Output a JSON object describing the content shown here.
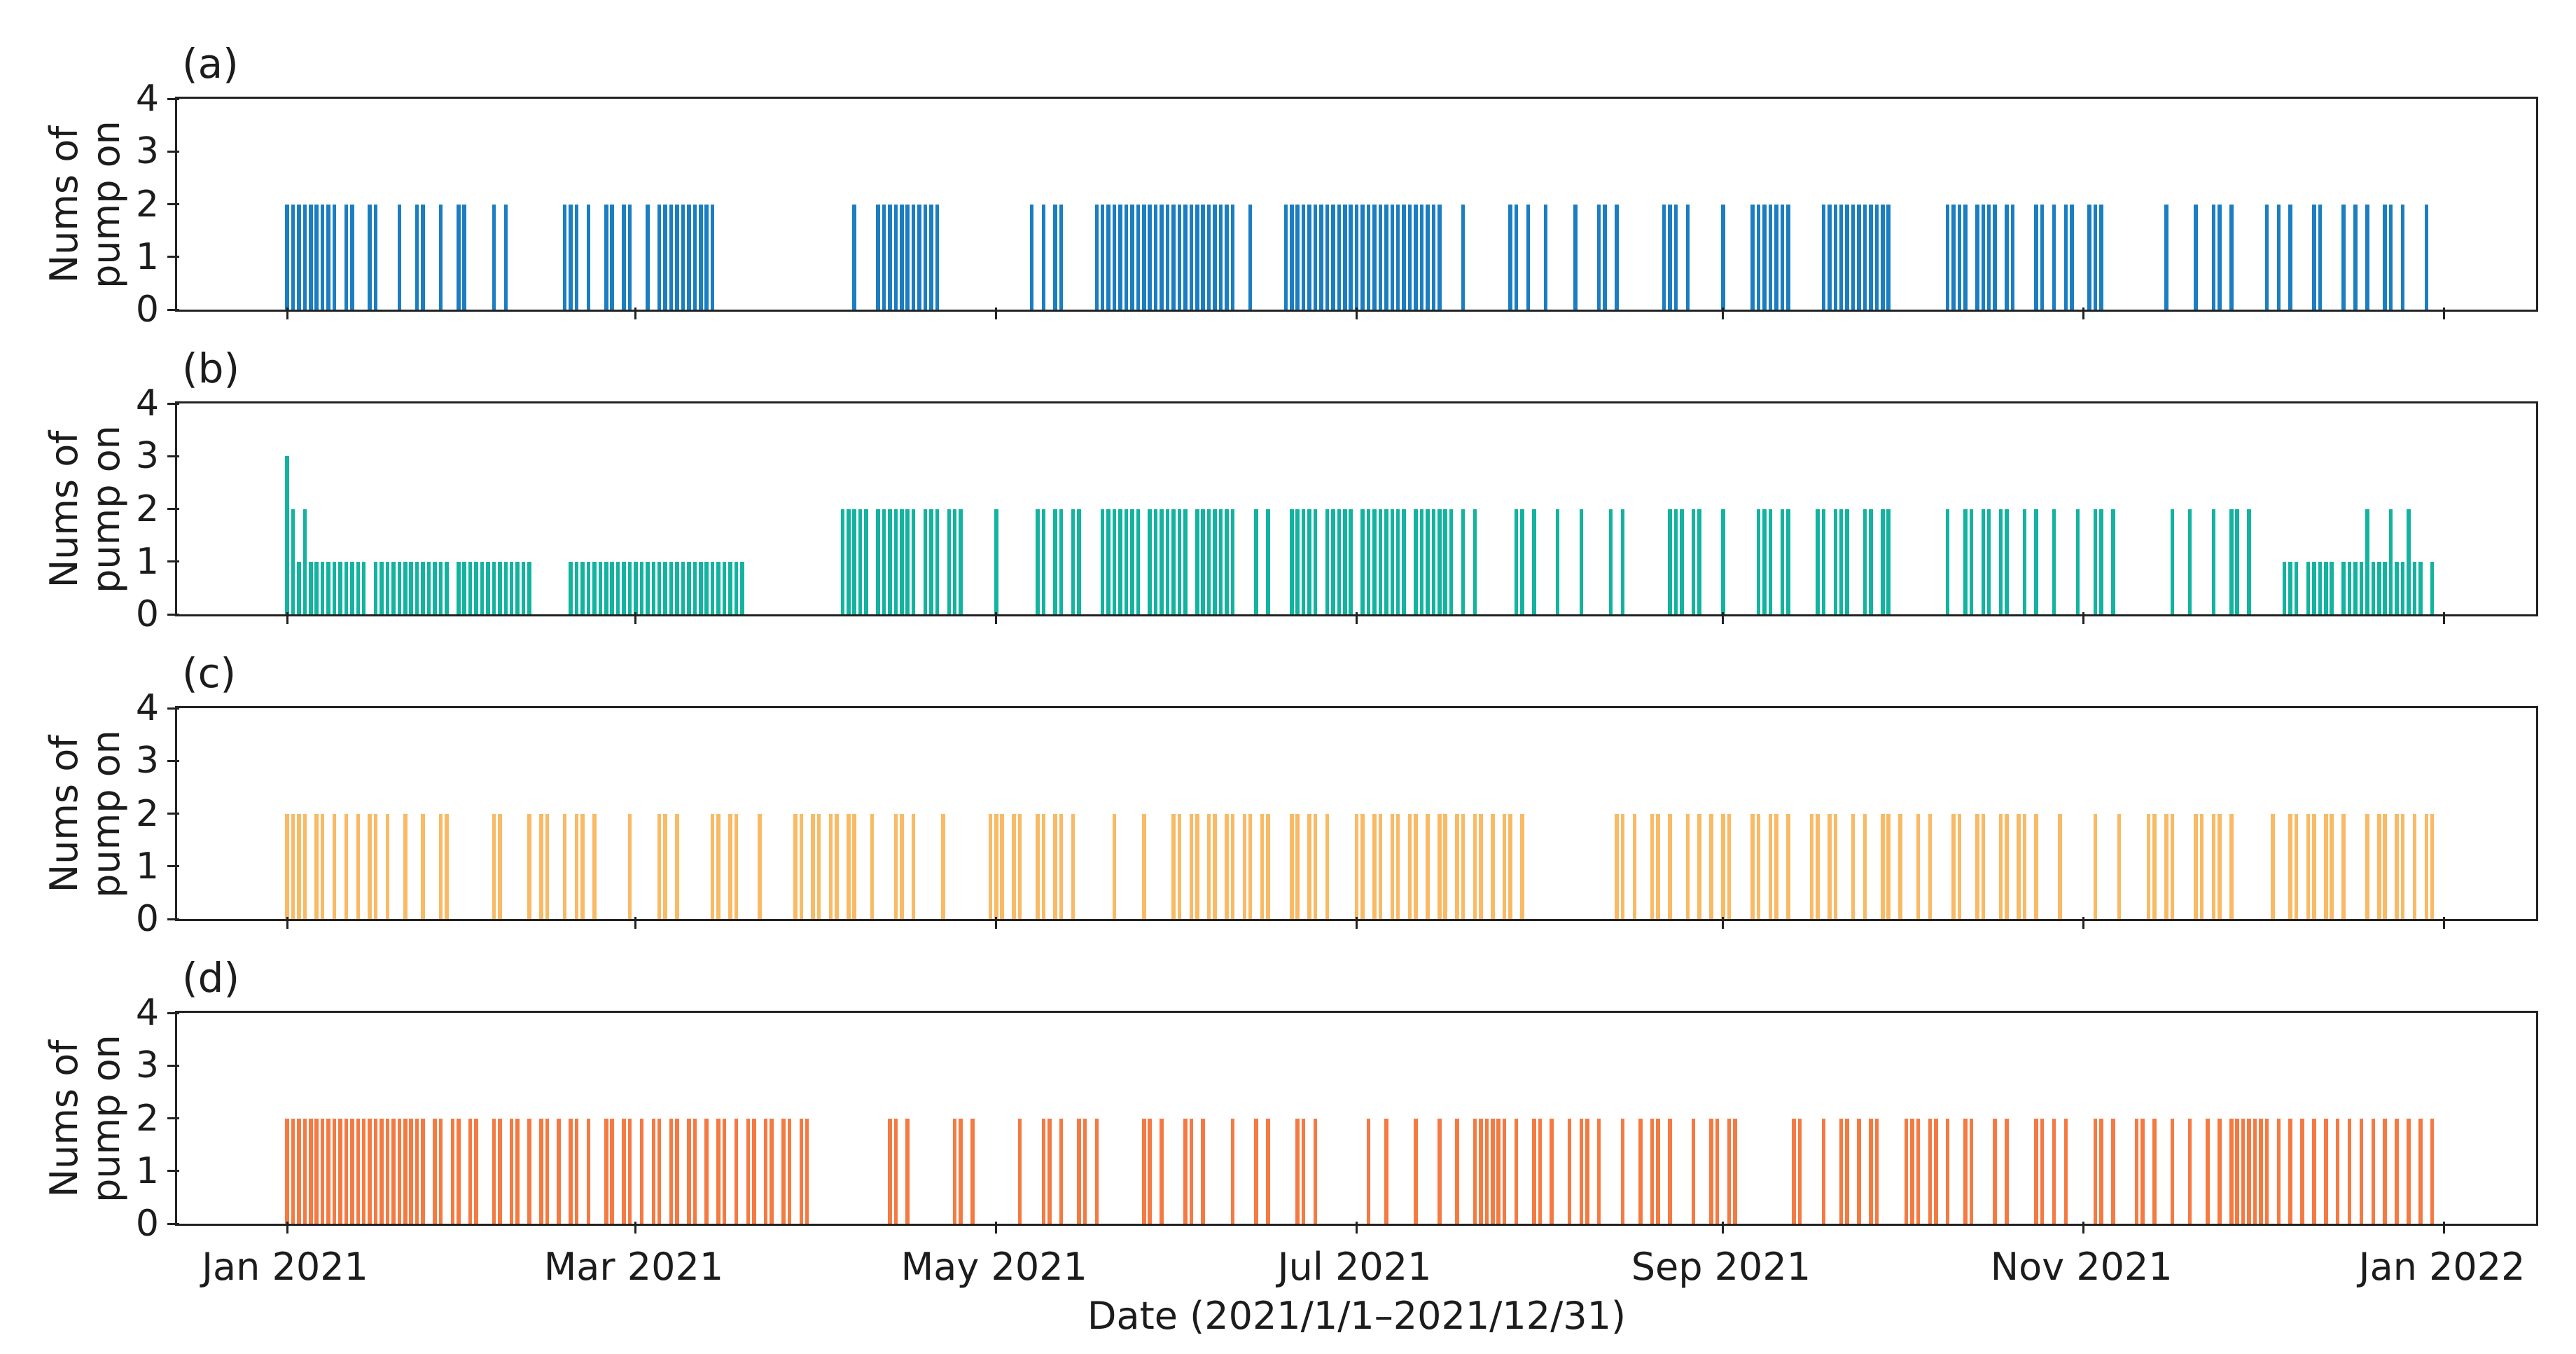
{
  "figure": {
    "xlabel": "Date (2021/1/1–2021/12/31)",
    "ylabel_line1": "Nums of",
    "ylabel_line2": "pump on",
    "x_tick_labels": [
      "Jan 2021",
      "Mar 2021",
      "May 2021",
      "Jul 2021",
      "Sep 2021",
      "Nov 2021",
      "Jan 2022"
    ],
    "y_tick_labels": [
      "0",
      "1",
      "2",
      "3",
      "4"
    ],
    "axis_color": "#222222"
  },
  "chart_data": [
    {
      "type": "bar",
      "panel_label": "(a)",
      "color": "#1b7ec2",
      "x_unit": "days since 2021-01-01",
      "x_range_days": [
        0,
        365
      ],
      "x_tick_days": [
        0,
        59,
        120,
        181,
        243,
        304,
        365
      ],
      "ylim": [
        0,
        4
      ],
      "value": 2,
      "days": [
        0,
        1,
        2,
        3,
        4,
        5,
        6,
        7,
        8,
        10,
        11,
        14,
        15,
        19,
        22,
        23,
        26,
        29,
        30,
        35,
        37,
        47,
        48,
        49,
        51,
        54,
        55,
        57,
        58,
        61,
        63,
        64,
        65,
        66,
        67,
        68,
        69,
        70,
        71,
        72,
        96,
        100,
        101,
        102,
        103,
        104,
        105,
        106,
        107,
        108,
        109,
        110,
        126,
        128,
        130,
        131,
        137,
        138,
        139,
        140,
        141,
        142,
        143,
        144,
        145,
        146,
        147,
        148,
        149,
        150,
        151,
        152,
        153,
        154,
        155,
        156,
        157,
        158,
        159,
        160,
        163,
        169,
        170,
        171,
        172,
        173,
        174,
        175,
        176,
        177,
        178,
        179,
        180,
        181,
        182,
        183,
        184,
        185,
        186,
        187,
        188,
        189,
        190,
        191,
        192,
        193,
        194,
        195,
        199,
        207,
        208,
        210,
        213,
        218,
        222,
        223,
        225,
        233,
        234,
        235,
        237,
        243,
        248,
        249,
        250,
        251,
        252,
        253,
        254,
        260,
        261,
        262,
        263,
        264,
        265,
        266,
        267,
        268,
        269,
        270,
        271,
        281,
        282,
        283,
        284,
        286,
        287,
        288,
        289,
        291,
        292,
        296,
        297,
        299,
        301,
        302,
        305,
        306,
        307,
        318,
        323,
        326,
        327,
        329,
        335,
        337,
        339,
        343,
        344,
        348,
        350,
        352,
        355,
        356,
        358,
        362
      ]
    },
    {
      "type": "bar",
      "panel_label": "(b)",
      "color": "#12b4a0",
      "x_unit": "days since 2021-01-01",
      "x_range_days": [
        0,
        365
      ],
      "x_tick_days": [
        0,
        59,
        120,
        181,
        243,
        304,
        365
      ],
      "ylim": [
        0,
        4
      ],
      "bars": [
        [
          0,
          3
        ],
        [
          1,
          2
        ],
        [
          3,
          2
        ],
        [
          2,
          1
        ],
        [
          4,
          1
        ],
        [
          5,
          1
        ],
        [
          6,
          1
        ],
        [
          7,
          1
        ],
        [
          8,
          1
        ],
        [
          9,
          1
        ],
        [
          10,
          1
        ],
        [
          11,
          1
        ],
        [
          12,
          1
        ],
        [
          13,
          1
        ],
        [
          15,
          1
        ],
        [
          16,
          1
        ],
        [
          17,
          1
        ],
        [
          18,
          1
        ],
        [
          19,
          1
        ],
        [
          20,
          1
        ],
        [
          21,
          1
        ],
        [
          22,
          1
        ],
        [
          23,
          1
        ],
        [
          24,
          1
        ],
        [
          25,
          1
        ],
        [
          26,
          1
        ],
        [
          27,
          1
        ],
        [
          29,
          1
        ],
        [
          30,
          1
        ],
        [
          31,
          1
        ],
        [
          32,
          1
        ],
        [
          33,
          1
        ],
        [
          34,
          1
        ],
        [
          35,
          1
        ],
        [
          36,
          1
        ],
        [
          37,
          1
        ],
        [
          38,
          1
        ],
        [
          39,
          1
        ],
        [
          40,
          1
        ],
        [
          41,
          1
        ],
        [
          48,
          1
        ],
        [
          49,
          1
        ],
        [
          50,
          1
        ],
        [
          51,
          1
        ],
        [
          52,
          1
        ],
        [
          53,
          1
        ],
        [
          54,
          1
        ],
        [
          55,
          1
        ],
        [
          56,
          1
        ],
        [
          57,
          1
        ],
        [
          58,
          1
        ],
        [
          59,
          1
        ],
        [
          60,
          1
        ],
        [
          61,
          1
        ],
        [
          62,
          1
        ],
        [
          63,
          1
        ],
        [
          64,
          1
        ],
        [
          65,
          1
        ],
        [
          66,
          1
        ],
        [
          67,
          1
        ],
        [
          68,
          1
        ],
        [
          69,
          1
        ],
        [
          70,
          1
        ],
        [
          71,
          1
        ],
        [
          72,
          1
        ],
        [
          73,
          1
        ],
        [
          74,
          1
        ],
        [
          75,
          1
        ],
        [
          76,
          1
        ],
        [
          77,
          1
        ],
        [
          94,
          2
        ],
        [
          95,
          2
        ],
        [
          96,
          2
        ],
        [
          97,
          2
        ],
        [
          98,
          2
        ],
        [
          100,
          2
        ],
        [
          101,
          2
        ],
        [
          102,
          2
        ],
        [
          103,
          2
        ],
        [
          104,
          2
        ],
        [
          105,
          2
        ],
        [
          106,
          2
        ],
        [
          108,
          2
        ],
        [
          109,
          2
        ],
        [
          110,
          2
        ],
        [
          112,
          2
        ],
        [
          113,
          2
        ],
        [
          114,
          2
        ],
        [
          120,
          2
        ],
        [
          127,
          2
        ],
        [
          128,
          2
        ],
        [
          130,
          2
        ],
        [
          131,
          2
        ],
        [
          133,
          2
        ],
        [
          134,
          2
        ],
        [
          138,
          2
        ],
        [
          139,
          2
        ],
        [
          140,
          2
        ],
        [
          141,
          2
        ],
        [
          142,
          2
        ],
        [
          143,
          2
        ],
        [
          144,
          2
        ],
        [
          146,
          2
        ],
        [
          147,
          2
        ],
        [
          148,
          2
        ],
        [
          149,
          2
        ],
        [
          150,
          2
        ],
        [
          151,
          2
        ],
        [
          152,
          2
        ],
        [
          154,
          2
        ],
        [
          155,
          2
        ],
        [
          156,
          2
        ],
        [
          157,
          2
        ],
        [
          158,
          2
        ],
        [
          159,
          2
        ],
        [
          160,
          2
        ],
        [
          164,
          2
        ],
        [
          166,
          2
        ],
        [
          170,
          2
        ],
        [
          171,
          2
        ],
        [
          172,
          2
        ],
        [
          173,
          2
        ],
        [
          174,
          2
        ],
        [
          176,
          2
        ],
        [
          177,
          2
        ],
        [
          178,
          2
        ],
        [
          179,
          2
        ],
        [
          180,
          2
        ],
        [
          182,
          2
        ],
        [
          183,
          2
        ],
        [
          184,
          2
        ],
        [
          185,
          2
        ],
        [
          186,
          2
        ],
        [
          187,
          2
        ],
        [
          188,
          2
        ],
        [
          189,
          2
        ],
        [
          191,
          2
        ],
        [
          192,
          2
        ],
        [
          193,
          2
        ],
        [
          194,
          2
        ],
        [
          195,
          2
        ],
        [
          196,
          2
        ],
        [
          197,
          2
        ],
        [
          199,
          2
        ],
        [
          201,
          2
        ],
        [
          208,
          2
        ],
        [
          209,
          2
        ],
        [
          211,
          2
        ],
        [
          215,
          2
        ],
        [
          219,
          2
        ],
        [
          224,
          2
        ],
        [
          226,
          2
        ],
        [
          234,
          2
        ],
        [
          235,
          2
        ],
        [
          236,
          2
        ],
        [
          238,
          2
        ],
        [
          239,
          2
        ],
        [
          243,
          2
        ],
        [
          249,
          2
        ],
        [
          250,
          2
        ],
        [
          251,
          2
        ],
        [
          253,
          2
        ],
        [
          254,
          2
        ],
        [
          259,
          2
        ],
        [
          260,
          2
        ],
        [
          262,
          2
        ],
        [
          263,
          2
        ],
        [
          264,
          2
        ],
        [
          267,
          2
        ],
        [
          268,
          2
        ],
        [
          270,
          2
        ],
        [
          271,
          2
        ],
        [
          281,
          2
        ],
        [
          284,
          2
        ],
        [
          285,
          2
        ],
        [
          287,
          2
        ],
        [
          288,
          2
        ],
        [
          290,
          2
        ],
        [
          291,
          2
        ],
        [
          294,
          2
        ],
        [
          296,
          2
        ],
        [
          299,
          2
        ],
        [
          303,
          2
        ],
        [
          306,
          2
        ],
        [
          307,
          2
        ],
        [
          309,
          2
        ],
        [
          319,
          2
        ],
        [
          322,
          2
        ],
        [
          326,
          2
        ],
        [
          329,
          2
        ],
        [
          330,
          2
        ],
        [
          332,
          2
        ],
        [
          338,
          1
        ],
        [
          339,
          1
        ],
        [
          340,
          1
        ],
        [
          342,
          1
        ],
        [
          343,
          1
        ],
        [
          344,
          1
        ],
        [
          345,
          1
        ],
        [
          346,
          1
        ],
        [
          348,
          1
        ],
        [
          349,
          1
        ],
        [
          350,
          1
        ],
        [
          351,
          1
        ],
        [
          352,
          2
        ],
        [
          353,
          1
        ],
        [
          354,
          1
        ],
        [
          355,
          1
        ],
        [
          356,
          2
        ],
        [
          357,
          1
        ],
        [
          358,
          1
        ],
        [
          359,
          2
        ],
        [
          360,
          1
        ],
        [
          361,
          1
        ],
        [
          363,
          1
        ]
      ]
    },
    {
      "type": "bar",
      "panel_label": "(c)",
      "color": "#f9ba65",
      "x_unit": "days since 2021-01-01",
      "x_range_days": [
        0,
        365
      ],
      "x_tick_days": [
        0,
        59,
        120,
        181,
        243,
        304,
        365
      ],
      "ylim": [
        0,
        4
      ],
      "value": 2,
      "days": [
        0,
        1,
        2,
        3,
        5,
        6,
        8,
        10,
        12,
        14,
        15,
        17,
        20,
        23,
        26,
        27,
        35,
        36,
        41,
        43,
        44,
        47,
        49,
        50,
        52,
        58,
        63,
        64,
        66,
        72,
        73,
        75,
        76,
        80,
        86,
        87,
        89,
        90,
        92,
        93,
        95,
        96,
        99,
        103,
        104,
        106,
        111,
        119,
        120,
        121,
        123,
        124,
        127,
        128,
        130,
        131,
        133,
        140,
        145,
        150,
        151,
        153,
        154,
        156,
        157,
        159,
        160,
        162,
        163,
        165,
        166,
        170,
        171,
        173,
        174,
        176,
        181,
        182,
        184,
        185,
        187,
        188,
        190,
        191,
        193,
        195,
        196,
        198,
        199,
        201,
        202,
        204,
        206,
        207,
        209,
        225,
        226,
        228,
        231,
        232,
        234,
        237,
        239,
        241,
        243,
        244,
        248,
        249,
        251,
        252,
        254,
        258,
        259,
        261,
        262,
        265,
        267,
        270,
        271,
        273,
        276,
        278,
        282,
        283,
        286,
        287,
        290,
        291,
        293,
        294,
        296,
        300,
        306,
        310,
        315,
        316,
        318,
        319,
        323,
        324,
        326,
        327,
        329,
        336,
        339,
        340,
        342,
        343,
        345,
        346,
        348,
        352,
        354,
        355,
        357,
        358,
        360,
        362,
        363
      ]
    },
    {
      "type": "bar",
      "panel_label": "(d)",
      "color": "#f57a42",
      "x_unit": "days since 2021-01-01",
      "x_range_days": [
        0,
        365
      ],
      "x_tick_days": [
        0,
        59,
        120,
        181,
        243,
        304,
        365
      ],
      "ylim": [
        0,
        4
      ],
      "value": 2,
      "days": [
        0,
        1,
        2,
        3,
        4,
        5,
        6,
        7,
        8,
        9,
        10,
        11,
        12,
        13,
        14,
        15,
        16,
        17,
        18,
        19,
        20,
        21,
        22,
        23,
        25,
        26,
        28,
        29,
        31,
        32,
        35,
        36,
        38,
        39,
        41,
        43,
        44,
        46,
        48,
        49,
        51,
        54,
        55,
        57,
        58,
        60,
        62,
        63,
        65,
        66,
        68,
        69,
        71,
        73,
        74,
        76,
        78,
        79,
        81,
        82,
        84,
        85,
        87,
        88,
        102,
        103,
        105,
        113,
        114,
        116,
        124,
        128,
        129,
        131,
        134,
        135,
        137,
        145,
        146,
        148,
        152,
        153,
        155,
        160,
        164,
        166,
        171,
        172,
        174,
        183,
        186,
        191,
        195,
        198,
        201,
        202,
        203,
        204,
        205,
        206,
        208,
        211,
        212,
        214,
        217,
        219,
        220,
        222,
        226,
        229,
        231,
        232,
        234,
        238,
        241,
        242,
        244,
        245,
        255,
        256,
        260,
        263,
        264,
        266,
        268,
        269,
        274,
        275,
        276,
        278,
        279,
        281,
        284,
        285,
        289,
        291,
        296,
        297,
        299,
        301,
        306,
        307,
        309,
        313,
        314,
        316,
        319,
        322,
        325,
        327,
        329,
        330,
        331,
        332,
        333,
        334,
        335,
        337,
        339,
        341,
        343,
        345,
        347,
        349,
        351,
        353,
        355,
        357,
        359,
        361,
        363
      ]
    }
  ]
}
